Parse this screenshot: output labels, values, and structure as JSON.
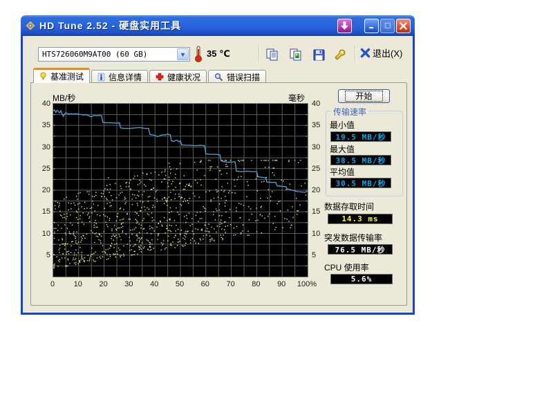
{
  "window": {
    "title": "HD Tune 2.52 - 硬盘实用工具",
    "controls": {
      "download": "↓",
      "minimize": "_",
      "maximize": "",
      "close": "✕"
    }
  },
  "toolbar": {
    "drive_select": {
      "value": "HTS726060M9AT00  (60 GB)"
    },
    "temperature": "35 ℃",
    "icons": [
      "copy-text",
      "copy-image",
      "save",
      "options"
    ],
    "exit_label": "退出(X)"
  },
  "tabs": [
    {
      "label": "基准测试",
      "icon": "bulb-icon",
      "active": true
    },
    {
      "label": "信息详情",
      "icon": "info-icon",
      "active": false
    },
    {
      "label": "健康状况",
      "icon": "health-cross-icon",
      "active": false
    },
    {
      "label": "错误扫描",
      "icon": "scan-icon",
      "active": false
    }
  ],
  "panel": {
    "start_button": "开始",
    "transfer_group": "传输速率",
    "min_label": "最小值",
    "min_value": "19.5 MB/秒",
    "max_label": "最大值",
    "max_value": "38.5 MB/秒",
    "avg_label": "平均值",
    "avg_value": "30.5 MB/秒",
    "access_label": "数据存取时间",
    "access_value": "14.3 ms",
    "burst_label": "突发数据传输率",
    "burst_value": "76.5 MB/秒",
    "cpu_label": "CPU 使用率",
    "cpu_value": "5.6%"
  },
  "chart_data": {
    "type": "line",
    "left_axis_label": "MB/秒",
    "right_axis_label": "毫秒",
    "xlim": [
      0,
      100
    ],
    "ylim": [
      0,
      40
    ],
    "x_ticks": [
      0,
      10,
      20,
      30,
      40,
      50,
      60,
      70,
      80,
      90,
      100
    ],
    "x_tick_labels": [
      "0",
      "10",
      "20",
      "30",
      "40",
      "50",
      "60",
      "70",
      "80",
      "90",
      "100%"
    ],
    "y_ticks": [
      40,
      35,
      30,
      25,
      20,
      15,
      10,
      5
    ],
    "grid": {
      "x_step": 5,
      "y_step": 2.5,
      "color": "#5E5E5E"
    },
    "series": [
      {
        "name": "transfer-rate-line",
        "type": "line",
        "color": "#4DA6DA",
        "points": [
          [
            0,
            38.3
          ],
          [
            0.5,
            38.6
          ],
          [
            1,
            38.0
          ],
          [
            1.5,
            38.5
          ],
          [
            2,
            38.2
          ],
          [
            2.5,
            37.9
          ],
          [
            3,
            38.4
          ],
          [
            3.5,
            37.6
          ],
          [
            4,
            37.1
          ],
          [
            4.5,
            37.7
          ],
          [
            5,
            37.9
          ],
          [
            6,
            37.6
          ],
          [
            7,
            37.7
          ],
          [
            8,
            37.6
          ],
          [
            9,
            37.7
          ],
          [
            10,
            37.6
          ],
          [
            11,
            37.5
          ],
          [
            12,
            37.4
          ],
          [
            13,
            37.5
          ],
          [
            14,
            37.2
          ],
          [
            15,
            37.0
          ],
          [
            16,
            37.3
          ],
          [
            17,
            37.2
          ],
          [
            18,
            37.3
          ],
          [
            19,
            37.2
          ],
          [
            19.5,
            35.7
          ],
          [
            21,
            35.6
          ],
          [
            23,
            35.6
          ],
          [
            25,
            35.5
          ],
          [
            26,
            35.6
          ],
          [
            26.5,
            34.4
          ],
          [
            28,
            34.3
          ],
          [
            30,
            34.3
          ],
          [
            32,
            34.4
          ],
          [
            34,
            34.5
          ],
          [
            35,
            34.4
          ],
          [
            36,
            34.3
          ],
          [
            37.5,
            34.3
          ],
          [
            38,
            32.9
          ],
          [
            39,
            32.8
          ],
          [
            40,
            32.7
          ],
          [
            41,
            32.4
          ],
          [
            42,
            32.6
          ],
          [
            43,
            32.8
          ],
          [
            44,
            32.8
          ],
          [
            45,
            33.0
          ],
          [
            46,
            32.8
          ],
          [
            46.5,
            31.4
          ],
          [
            47.5,
            31.3
          ],
          [
            48.5,
            31.6
          ],
          [
            49.5,
            31.2
          ],
          [
            50,
            31.4
          ],
          [
            50.5,
            30.5
          ],
          [
            52,
            30.4
          ],
          [
            54,
            30.4
          ],
          [
            56,
            30.3
          ],
          [
            58,
            30.4
          ],
          [
            59.5,
            30.3
          ],
          [
            60,
            28.4
          ],
          [
            62,
            28.3
          ],
          [
            64,
            28.3
          ],
          [
            65.5,
            28.2
          ],
          [
            66,
            26.8
          ],
          [
            67,
            26.6
          ],
          [
            68.5,
            26.5
          ],
          [
            70,
            26.5
          ],
          [
            71.5,
            26.6
          ],
          [
            72,
            24.4
          ],
          [
            74,
            24.3
          ],
          [
            76,
            24.4
          ],
          [
            78,
            24.3
          ],
          [
            80,
            24.3
          ],
          [
            80.5,
            23.1
          ],
          [
            82,
            23.0
          ],
          [
            83.5,
            22.9
          ],
          [
            84,
            21.9
          ],
          [
            86,
            21.8
          ],
          [
            87.5,
            21.8
          ],
          [
            88,
            21.0
          ],
          [
            90,
            20.9
          ],
          [
            91.5,
            20.8
          ],
          [
            92,
            20.3
          ],
          [
            93.5,
            20.1
          ],
          [
            94.5,
            19.9
          ],
          [
            96,
            19.7
          ],
          [
            97.5,
            19.6
          ],
          [
            99,
            19.5
          ],
          [
            100,
            19.8
          ]
        ]
      },
      {
        "name": "access-time-scatter",
        "type": "scatter",
        "color": "#E9F07E",
        "generator": {
          "seed": 987654321,
          "count": 1200,
          "y_min_base": 2,
          "y_min_slope": 0.1,
          "y_span_base": 16,
          "y_span_slope": 0.07,
          "density_full_until": 40,
          "density_falloff": 70,
          "density_min": 0.12,
          "low_bias_pow": 1.4,
          "outlier_rate": 0.03,
          "outlier_extra": 5,
          "y_cap": 27
        }
      }
    ]
  }
}
